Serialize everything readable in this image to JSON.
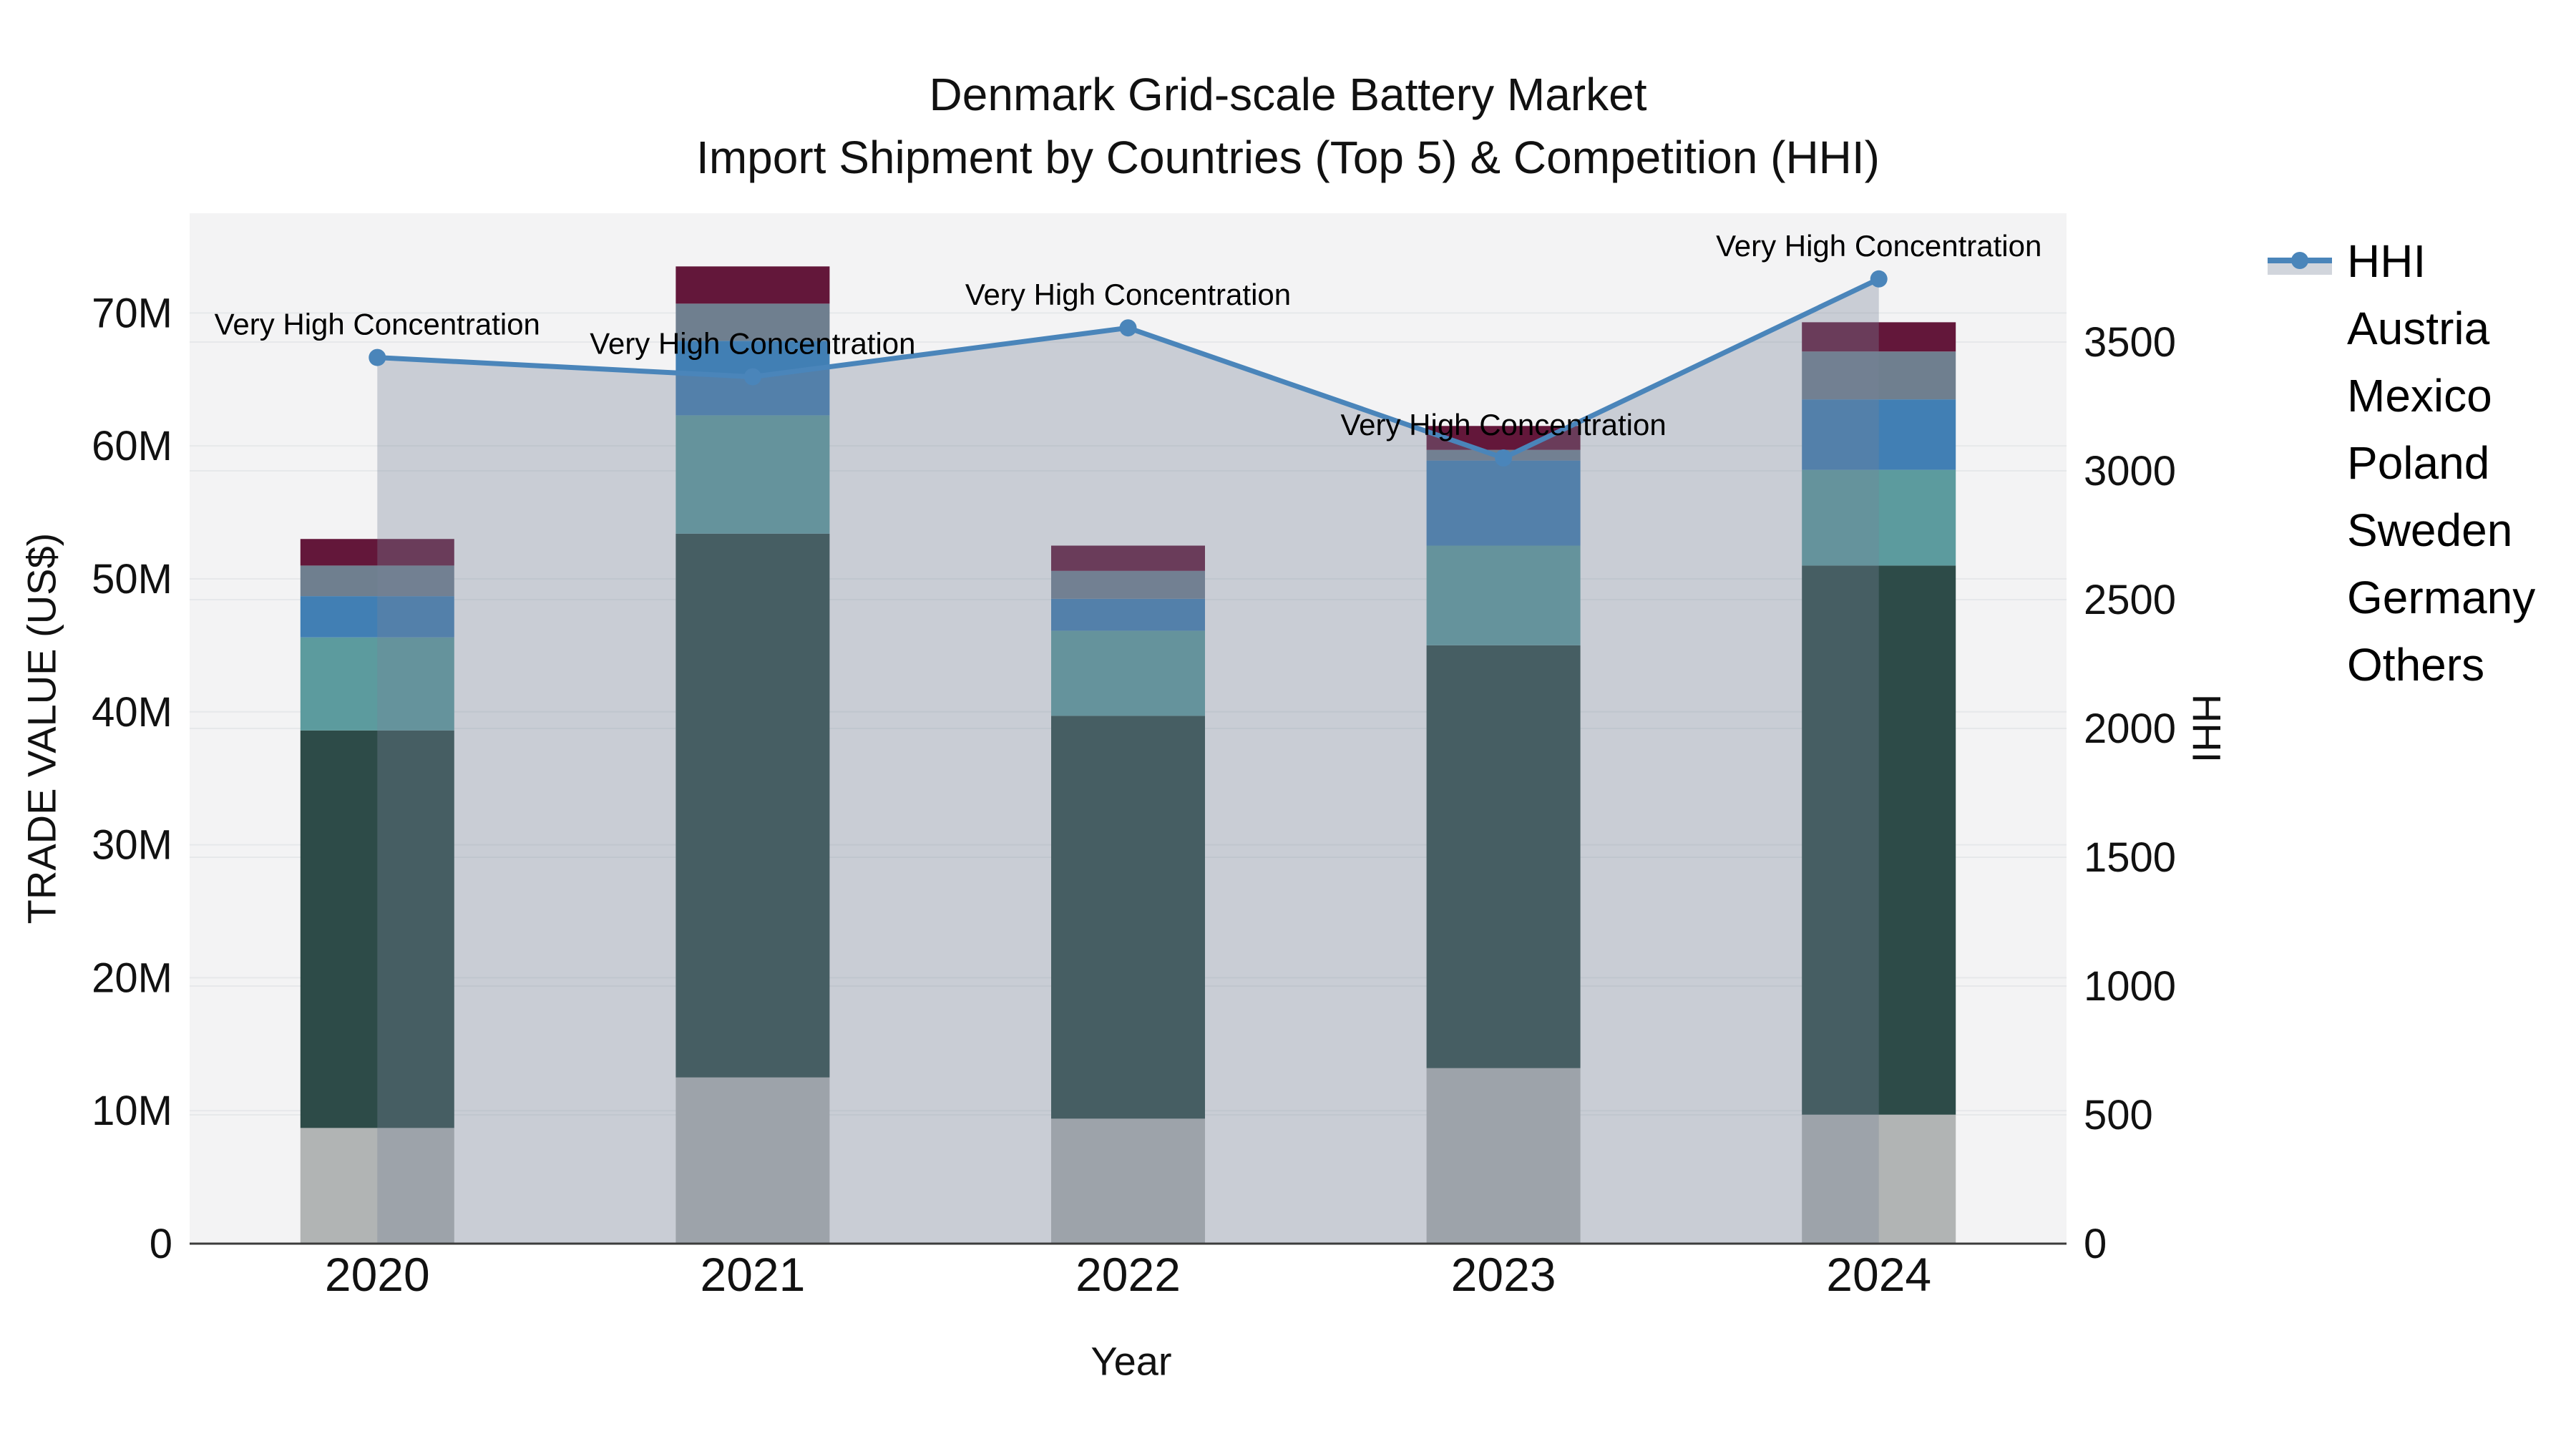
{
  "title": {
    "line1": "Denmark Grid-scale Battery Market",
    "line2": "Import Shipment by Countries (Top 5) & Competition (HHI)"
  },
  "chart_data": {
    "type": "stacked-bar+line",
    "title": "Denmark Grid-scale Battery Market Import Shipment by Countries (Top 5) & Competition (HHI)",
    "categories": [
      "2020",
      "2021",
      "2022",
      "2023",
      "2024"
    ],
    "unit": "millions US$",
    "series": [
      {
        "name": "Austria",
        "color": "#63173a",
        "values": [
          2.0,
          2.8,
          1.9,
          1.8,
          2.2
        ]
      },
      {
        "name": "Mexico",
        "color": "#6f7f8f",
        "values": [
          2.3,
          2.8,
          2.1,
          0.8,
          3.6
        ]
      },
      {
        "name": "Poland",
        "color": "#417fb4",
        "values": [
          3.1,
          5.6,
          2.4,
          6.4,
          5.3
        ]
      },
      {
        "name": "Sweden",
        "color": "#5c9b9e",
        "values": [
          7.0,
          8.9,
          6.4,
          7.5,
          7.2
        ]
      },
      {
        "name": "Germany",
        "color": "#2d4b48",
        "values": [
          29.9,
          40.9,
          30.3,
          31.8,
          41.3
        ]
      },
      {
        "name": "Others",
        "color": "#b1b4b4",
        "values": [
          8.7,
          12.5,
          9.4,
          13.2,
          9.7
        ]
      }
    ],
    "stack_order_bottom_to_top": [
      "Others",
      "Germany",
      "Sweden",
      "Poland",
      "Mexico",
      "Austria"
    ],
    "line_series": {
      "name": "HHI",
      "color": "#4a85ba",
      "fill_color": "rgba(120,132,153,0.34)",
      "values": [
        3440,
        3365,
        3555,
        3050,
        3745
      ]
    },
    "annotations": [
      {
        "text": "Very High Concentration",
        "category": "2020"
      },
      {
        "text": "Very High Concentration",
        "category": "2021"
      },
      {
        "text": "Very High Concentration",
        "category": "2022"
      },
      {
        "text": "Very High Concentration",
        "category": "2023"
      },
      {
        "text": "Very High Concentration",
        "category": "2024"
      }
    ],
    "axis_x": {
      "label": "Year"
    },
    "axis_left": {
      "label": "TRADE VALUE (US$)",
      "max": 77.5,
      "tick_values": [
        0,
        10,
        20,
        30,
        40,
        50,
        60,
        70
      ],
      "tick_labels": [
        "0",
        "10M",
        "20M",
        "30M",
        "40M",
        "50M",
        "60M",
        "70M"
      ]
    },
    "axis_right": {
      "label": "HHI",
      "max": 4000,
      "tick_values": [
        0,
        500,
        1000,
        1500,
        2000,
        2500,
        3000,
        3500
      ],
      "tick_labels": [
        "0",
        "500",
        "1000",
        "1500",
        "2000",
        "2500",
        "3000",
        "3500"
      ]
    },
    "legend_order": [
      "HHI",
      "Austria",
      "Mexico",
      "Poland",
      "Sweden",
      "Germany",
      "Others"
    ],
    "grid": true,
    "legend_position": "right",
    "plot_bg": "#f3f3f4",
    "grid_color": "#e6e8ea",
    "axisline_color": "#3c3c3c"
  }
}
